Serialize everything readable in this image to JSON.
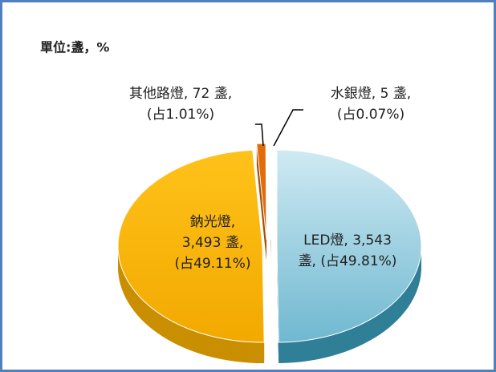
{
  "chart_data": {
    "type": "pie",
    "unit_label": "單位:盞，%",
    "labels": [
      [
        "LED燈, 3,543",
        "盞, (占49.81%)"
      ],
      [
        "鈉光燈,",
        "3,493 盞,",
        "(占49.11%)"
      ],
      [
        "其他路燈, 72 盞,",
        "(占1.01%)"
      ],
      [
        "水銀燈, 5 盞,",
        "(占0.07%)"
      ]
    ],
    "values": [
      3543,
      3493,
      72,
      5
    ],
    "colors": [
      "#9fd3e6",
      "#f7b500",
      "#e36c0a",
      "#d9d9d9"
    ],
    "side_colors": [
      "#2f7f97",
      "#c98f00",
      "#a94f06",
      "#9a9a9a"
    ]
  }
}
